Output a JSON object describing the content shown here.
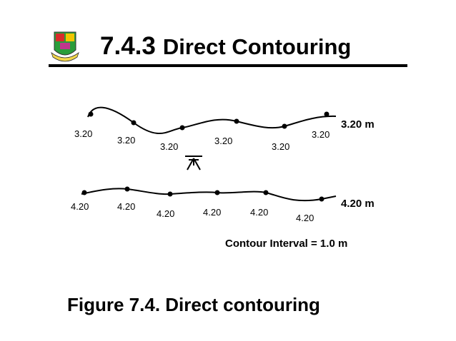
{
  "header": {
    "number": "7.4.3",
    "title": "Direct Contouring"
  },
  "contours": [
    {
      "label": "3.20 m",
      "points": [
        "3.20",
        "3.20",
        "3.20",
        "3.20",
        "3.20",
        "3.20"
      ]
    },
    {
      "label": "4.20 m",
      "points": [
        "4.20",
        "4.20",
        "4.20",
        "4.20",
        "4.20",
        "4.20"
      ]
    }
  ],
  "note": "Contour Interval = 1.0 m",
  "caption": "Figure 7.4. Direct contouring"
}
